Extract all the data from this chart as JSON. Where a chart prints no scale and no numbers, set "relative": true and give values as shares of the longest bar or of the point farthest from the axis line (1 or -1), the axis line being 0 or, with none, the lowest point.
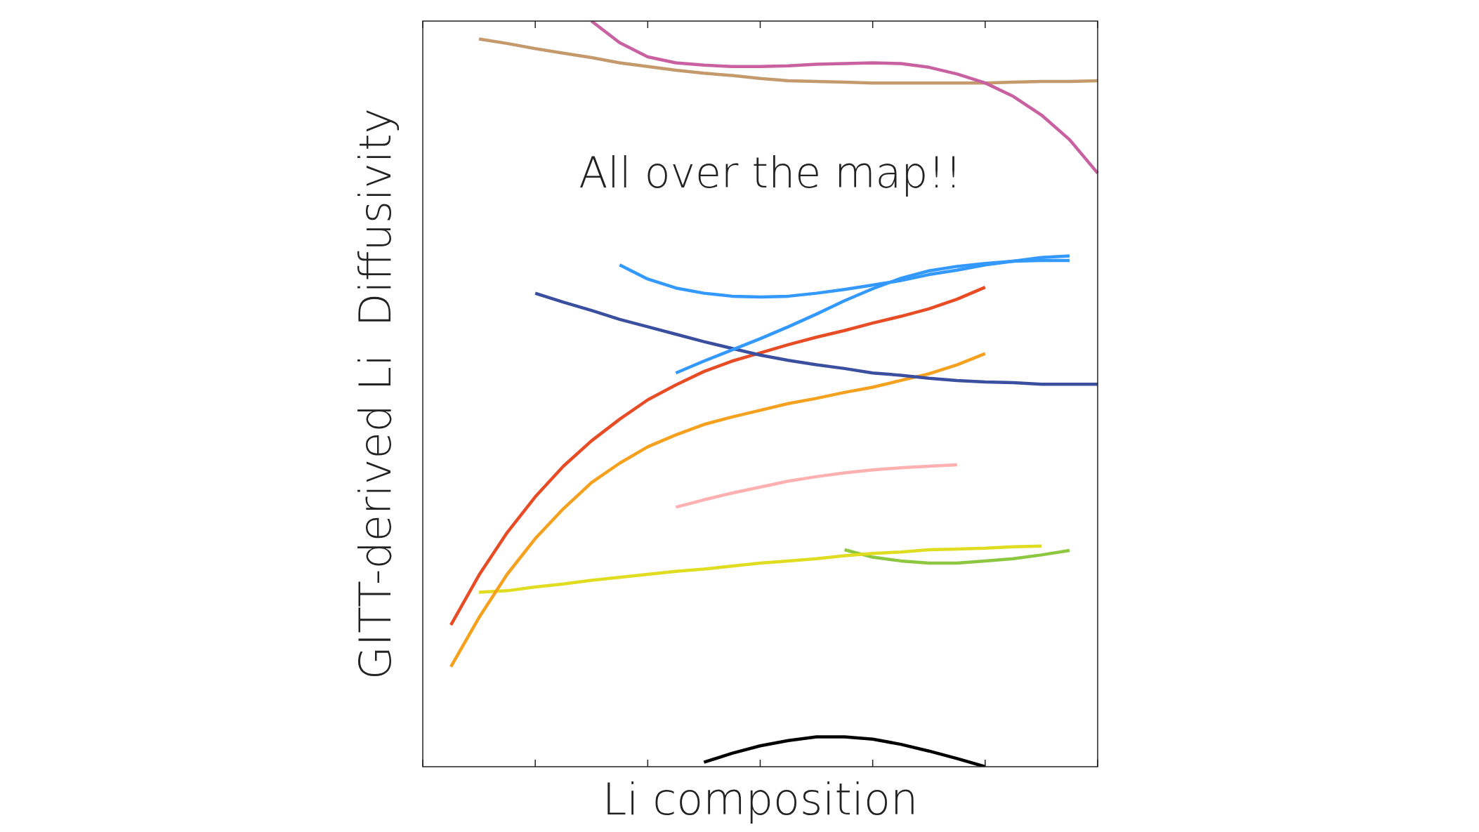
{
  "chart_data": {
    "type": "line",
    "relative": true,
    "xlabel": "Li composition",
    "ylabel": "GITT-derived Li  Diffusivity",
    "annotations": [
      "All over the map!!"
    ],
    "legend": false,
    "marker": "none",
    "line_style": "solid",
    "categories": [
      null,
      null,
      null,
      null,
      null,
      null,
      null,
      null,
      null,
      null,
      null,
      null,
      null,
      null,
      null,
      null,
      null,
      null,
      null,
      null,
      null,
      null,
      null,
      null,
      null
    ],
    "series": [
      {
        "color": "#c9609f",
        "values": [
          null,
          null,
          null,
          null,
          null,
          null,
          1,
          0.971,
          0.952,
          0.944,
          0.941,
          0.939,
          0.939,
          0.94,
          0.942,
          0.943,
          0.944,
          0.943,
          0.938,
          0.929,
          0.917,
          0.899,
          0.874,
          0.841,
          0.796
        ]
      },
      {
        "color": "#c49a6c",
        "values": [
          null,
          null,
          0.976,
          0.97,
          0.963,
          0.957,
          0.951,
          0.944,
          0.939,
          0.934,
          0.93,
          0.927,
          0.923,
          0.92,
          0.919,
          0.918,
          0.917,
          0.917,
          0.917,
          0.917,
          0.917,
          0.918,
          0.919,
          0.919,
          0.92
        ]
      },
      {
        "color": "#3399ff",
        "values": [
          null,
          null,
          null,
          null,
          null,
          null,
          null,
          0.673,
          0.654,
          0.642,
          0.635,
          0.631,
          0.63,
          0.631,
          0.635,
          0.64,
          0.646,
          0.652,
          0.66,
          0.666,
          0.673,
          0.678,
          0.683,
          0.685,
          null
        ]
      },
      {
        "color": "#3399ff",
        "values": [
          null,
          null,
          null,
          null,
          null,
          null,
          null,
          null,
          null,
          0.528,
          0.544,
          0.559,
          0.574,
          0.59,
          0.607,
          0.625,
          0.641,
          0.655,
          0.665,
          0.671,
          0.675,
          0.678,
          0.679,
          0.679,
          null
        ]
      },
      {
        "color": "#3a4fa0",
        "values": [
          null,
          null,
          null,
          null,
          0.635,
          0.623,
          0.612,
          0.6,
          0.59,
          0.58,
          0.57,
          0.561,
          0.552,
          0.545,
          0.539,
          0.534,
          0.528,
          0.525,
          0.521,
          0.518,
          0.516,
          0.515,
          0.513,
          0.513,
          0.513
        ]
      },
      {
        "color": "#e84c25",
        "values": [
          null,
          0.19,
          0.257,
          0.314,
          0.362,
          0.403,
          0.437,
          0.466,
          0.492,
          0.512,
          0.53,
          0.544,
          0.555,
          0.566,
          0.576,
          0.585,
          0.595,
          0.604,
          0.614,
          0.627,
          0.643,
          null,
          null,
          null,
          null
        ]
      },
      {
        "color": "#f5a11e",
        "values": [
          null,
          0.134,
          0.2,
          0.258,
          0.306,
          0.346,
          0.381,
          0.407,
          0.429,
          0.445,
          0.459,
          0.469,
          0.478,
          0.487,
          0.494,
          0.502,
          0.509,
          0.518,
          0.527,
          0.539,
          0.554,
          null,
          null,
          null,
          null
        ]
      },
      {
        "color": "#ffb0b0",
        "values": [
          null,
          null,
          null,
          null,
          null,
          null,
          null,
          null,
          null,
          0.348,
          0.358,
          0.367,
          0.375,
          0.383,
          0.389,
          0.394,
          0.398,
          0.401,
          0.403,
          0.405,
          null,
          null,
          null,
          null,
          null
        ]
      },
      {
        "color": "#e0dc20",
        "values": [
          null,
          null,
          0.234,
          0.236,
          0.241,
          0.245,
          0.25,
          0.254,
          0.258,
          0.262,
          0.265,
          0.269,
          0.273,
          0.276,
          0.279,
          0.283,
          0.286,
          0.288,
          0.291,
          0.292,
          0.293,
          0.295,
          0.296,
          null,
          null
        ]
      },
      {
        "color": "#8dc63f",
        "values": [
          null,
          null,
          null,
          null,
          null,
          null,
          null,
          null,
          null,
          null,
          null,
          null,
          null,
          null,
          null,
          0.291,
          0.281,
          0.276,
          0.273,
          0.273,
          0.276,
          0.279,
          0.284,
          0.29,
          null
        ]
      },
      {
        "color": "#000000",
        "values": [
          null,
          null,
          null,
          null,
          null,
          null,
          null,
          null,
          null,
          null,
          0.006,
          0.018,
          0.028,
          0.035,
          0.04,
          0.04,
          0.037,
          0.03,
          0.021,
          0.011,
          0,
          null,
          null,
          null,
          null
        ]
      }
    ]
  }
}
